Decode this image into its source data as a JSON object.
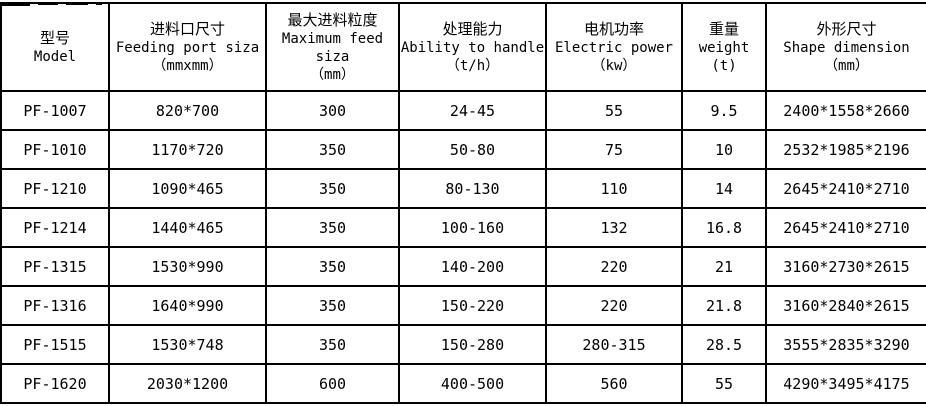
{
  "accent_colors": {
    "border": "#000000",
    "text": "#000000",
    "background": "#ffffff"
  },
  "chart_data": {
    "type": "table",
    "title": "",
    "columns": [
      {
        "name": "model",
        "lines": [
          "型号",
          "Model"
        ]
      },
      {
        "name": "feeding-port-size",
        "lines": [
          "进料口尺寸",
          "Feeding port siza",
          "（mmxmm）"
        ]
      },
      {
        "name": "max-feed-size",
        "lines": [
          "最大进料粒度",
          "Maximum feed",
          "siza",
          "（mm）"
        ]
      },
      {
        "name": "ability-to-handle",
        "lines": [
          "处理能力",
          "Ability to handle",
          "（t/h）"
        ]
      },
      {
        "name": "electric-power",
        "lines": [
          "电机功率",
          "Electric power",
          "（kw）"
        ]
      },
      {
        "name": "weight",
        "lines": [
          "重量",
          "weight",
          "(t)"
        ]
      },
      {
        "name": "shape-dimension",
        "lines": [
          "外形尺寸",
          "Shape dimension",
          "（mm）"
        ]
      }
    ],
    "rows": [
      [
        "PF-1007",
        "820*700",
        "300",
        "24-45",
        "55",
        "9.5",
        "2400*1558*2660"
      ],
      [
        "PF-1010",
        "1170*720",
        "350",
        "50-80",
        "75",
        "10",
        "2532*1985*2196"
      ],
      [
        "PF-1210",
        "1090*465",
        "350",
        "80-130",
        "110",
        "14",
        "2645*2410*2710"
      ],
      [
        "PF-1214",
        "1440*465",
        "350",
        "100-160",
        "132",
        "16.8",
        "2645*2410*2710"
      ],
      [
        "PF-1315",
        "1530*990",
        "350",
        "140-200",
        "220",
        "21",
        "3160*2730*2615"
      ],
      [
        "PF-1316",
        "1640*990",
        "350",
        "150-220",
        "220",
        "21.8",
        "3160*2840*2615"
      ],
      [
        "PF-1515",
        "1530*748",
        "350",
        "150-280",
        "280-315",
        "28.5",
        "3555*2835*3290"
      ],
      [
        "PF-1620",
        "2030*1200",
        "600",
        "400-500",
        "560",
        "55",
        "4290*3495*4175"
      ]
    ]
  }
}
